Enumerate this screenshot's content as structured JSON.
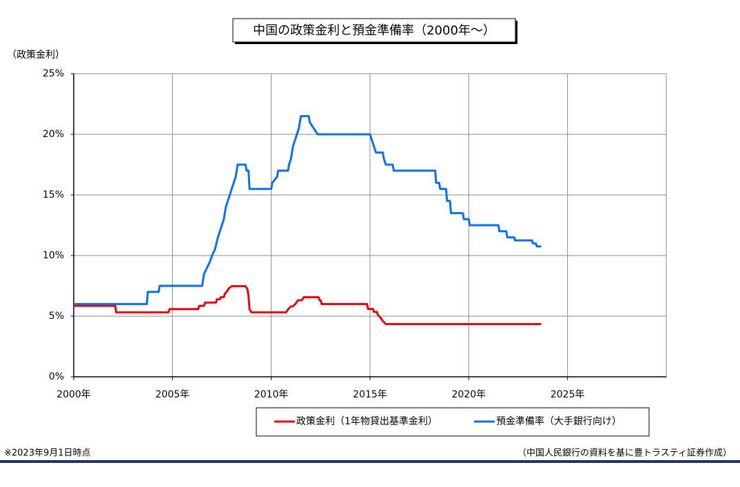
{
  "chart_data": {
    "type": "line",
    "title": "中国の政策金利と預金準備率（2000年～）",
    "y_label": "（政策金利）",
    "note": "※2023年9月1日時点",
    "source": "（中国人民銀行の資料を基に豊トラスティ証券作成）",
    "xlim": [
      2000,
      2030
    ],
    "xticks": [
      {
        "value": 2000,
        "label": "2000年"
      },
      {
        "value": 2005,
        "label": "2005年"
      },
      {
        "value": 2010,
        "label": "2010年"
      },
      {
        "value": 2015,
        "label": "2015年"
      },
      {
        "value": 2020,
        "label": "2020年"
      },
      {
        "value": 2025,
        "label": "2025年"
      }
    ],
    "ylim": [
      0,
      25
    ],
    "yticks": [
      {
        "value": 0,
        "label": "0%"
      },
      {
        "value": 5,
        "label": "5%"
      },
      {
        "value": 10,
        "label": "10%"
      },
      {
        "value": 15,
        "label": "15%"
      },
      {
        "value": 20,
        "label": "20%"
      },
      {
        "value": 25,
        "label": "25%"
      }
    ],
    "grid": true,
    "series": [
      {
        "name": "政策金利（1年物貸出基準金利）",
        "color": "#e8000b",
        "x": [
          2000,
          2002.1,
          2002.15,
          2004.8,
          2004.85,
          2006.3,
          2006.35,
          2006.6,
          2006.65,
          2007.2,
          2007.25,
          2007.4,
          2007.45,
          2007.6,
          2007.65,
          2007.75,
          2007.85,
          2008.0,
          2008.7,
          2008.8,
          2008.85,
          2008.9,
          2009.0,
          2010.75,
          2010.85,
          2011.0,
          2011.1,
          2011.25,
          2011.35,
          2011.55,
          2011.65,
          2012.4,
          2012.45,
          2012.5,
          2012.55,
          2014.85,
          2014.9,
          2015.15,
          2015.2,
          2015.35,
          2015.4,
          2015.55,
          2015.65,
          2015.8,
          2023.67
        ],
        "values": [
          5.85,
          5.85,
          5.31,
          5.31,
          5.58,
          5.58,
          5.85,
          5.85,
          6.12,
          6.12,
          6.39,
          6.39,
          6.57,
          6.57,
          6.84,
          7.02,
          7.29,
          7.47,
          7.47,
          7.2,
          6.66,
          5.58,
          5.31,
          5.31,
          5.56,
          5.81,
          5.81,
          6.06,
          6.31,
          6.31,
          6.56,
          6.56,
          6.31,
          6.31,
          6.0,
          6.0,
          5.6,
          5.6,
          5.35,
          5.35,
          5.1,
          4.85,
          4.6,
          4.35,
          4.35
        ]
      },
      {
        "name": "預金準備率（大手銀行向け）",
        "color": "#0a6ef0",
        "x": [
          2000,
          2003.7,
          2003.75,
          2004.3,
          2004.35,
          2006.5,
          2006.6,
          2006.75,
          2006.9,
          2007.0,
          2007.15,
          2007.3,
          2007.4,
          2007.5,
          2007.6,
          2007.7,
          2007.8,
          2007.9,
          2008.0,
          2008.1,
          2008.2,
          2008.3,
          2008.45,
          2008.7,
          2008.75,
          2008.85,
          2008.9,
          2010.0,
          2010.05,
          2010.3,
          2010.35,
          2010.85,
          2010.9,
          2011.0,
          2011.1,
          2011.2,
          2011.3,
          2011.4,
          2011.5,
          2011.9,
          2011.95,
          2012.15,
          2012.35,
          2015.0,
          2015.1,
          2015.3,
          2015.65,
          2015.7,
          2015.8,
          2016.15,
          2016.2,
          2018.3,
          2018.35,
          2018.5,
          2018.55,
          2018.85,
          2018.9,
          2019.05,
          2019.1,
          2019.7,
          2019.75,
          2020.0,
          2020.05,
          2021.5,
          2021.55,
          2021.9,
          2021.95,
          2022.3,
          2022.35,
          2023.2,
          2023.25,
          2023.4,
          2023.45,
          2023.67
        ],
        "values": [
          6,
          6,
          7,
          7,
          7.5,
          7.5,
          8.5,
          9,
          9.5,
          10,
          10.5,
          11.5,
          12,
          12.5,
          13,
          14,
          14.5,
          15,
          15.5,
          16,
          16.5,
          17.5,
          17.5,
          17.5,
          17,
          17,
          15.5,
          15.5,
          16,
          16.5,
          17,
          17,
          17.5,
          18,
          19,
          19.5,
          20,
          20.5,
          21.5,
          21.5,
          21,
          20.5,
          20,
          20,
          19.5,
          18.5,
          18.5,
          18,
          17.5,
          17.5,
          17,
          17,
          16,
          16,
          15.5,
          15.5,
          14.5,
          14.5,
          13.5,
          13.5,
          13,
          13,
          12.5,
          12.5,
          12,
          12,
          11.5,
          11.5,
          11.25,
          11.25,
          11,
          11,
          10.75,
          10.75
        ]
      }
    ]
  }
}
